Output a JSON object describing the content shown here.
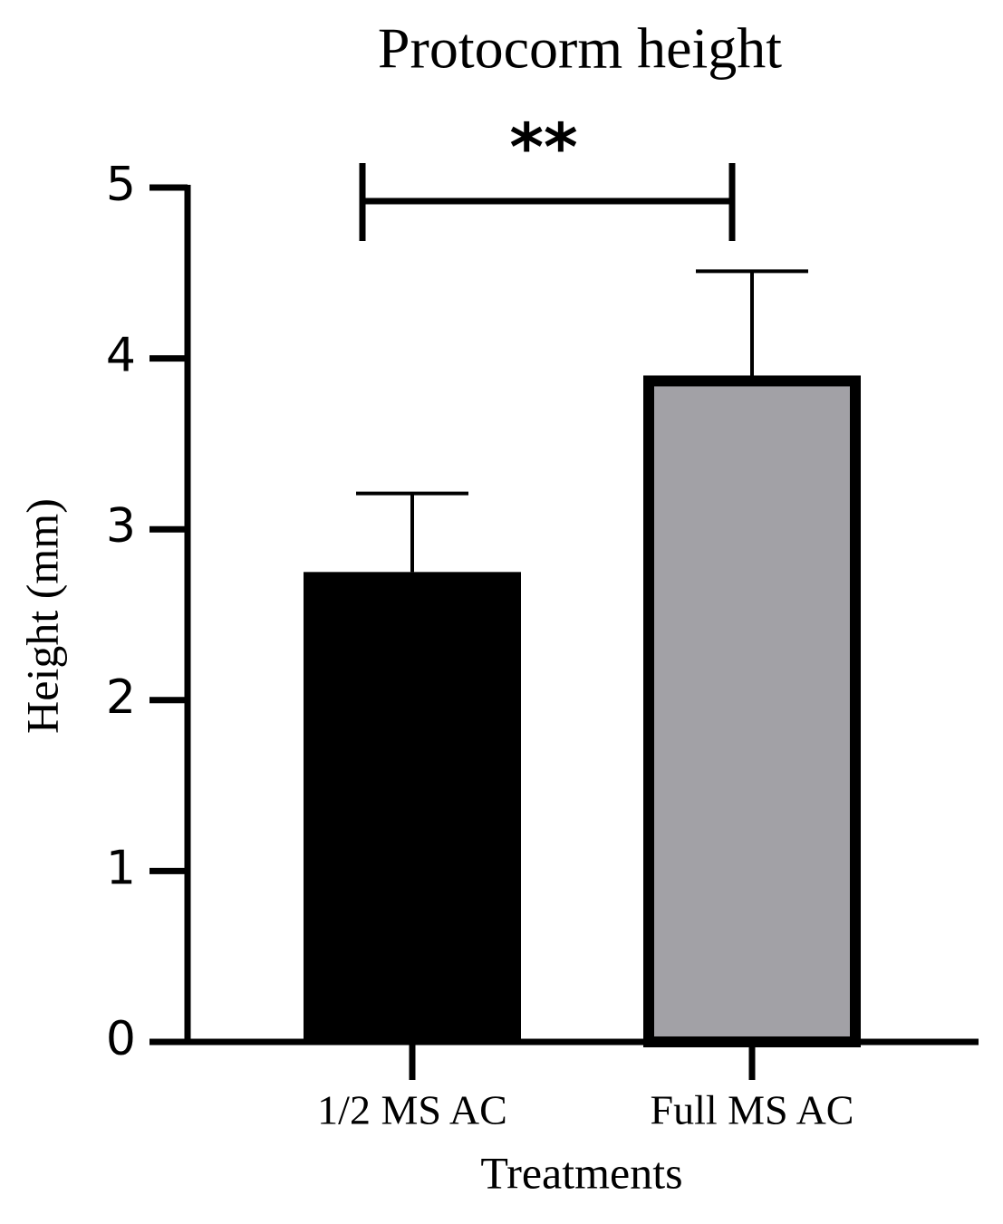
{
  "chart_data": {
    "type": "bar",
    "title": "Protocorm height",
    "xlabel": "Treatments",
    "ylabel": "Height (mm)",
    "categories": [
      "1/2 MS AC",
      "Full MS AC"
    ],
    "values": [
      2.75,
      3.9
    ],
    "errors": [
      0.46,
      0.61
    ],
    "colors": [
      "#000000",
      "#a2a1a6"
    ],
    "edgecolor": "#000000",
    "ylim": [
      0,
      5
    ],
    "yticks": [
      0,
      1,
      2,
      3,
      4,
      5
    ],
    "grid": false,
    "annotation": "**"
  }
}
